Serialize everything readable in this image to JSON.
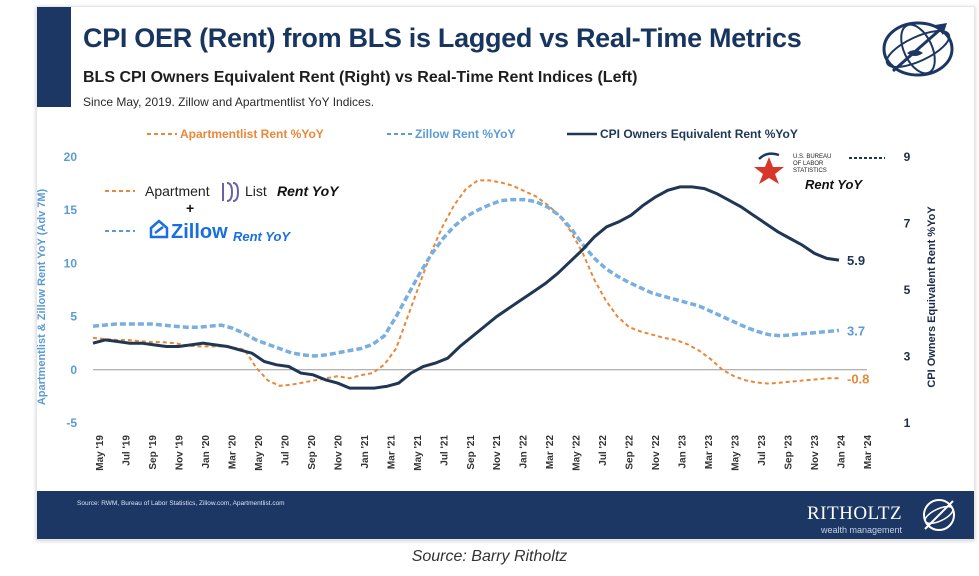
{
  "header": {
    "title": "CPI OER (Rent) from BLS is Lagged vs Real-Time Metrics",
    "subtitle": "BLS CPI Owners Equivalent Rent (Right) vs Real-Time Rent Indices (Left)",
    "note": "Since May, 2019. Zillow and Apartmentlist YoY Indices."
  },
  "inline_labels": {
    "apartment_word": "Apartment",
    "list_word": "List",
    "rent_yoy_1": "Rent YoY",
    "plus": "+",
    "zillow_word": "Zillow",
    "rent_yoy_2": "Rent YoY",
    "bls_line1": "U.S. BUREAU",
    "bls_line2": "OF LABOR",
    "bls_line3": "STATISTICS",
    "rent_yoy_3": "Rent YoY"
  },
  "footer": {
    "source": "Source: RWM, Bureau of Labor Statistics, Zillow.com, Apartmentlist.com",
    "brand": "RITHOLTZ",
    "brand_sub": "wealth management"
  },
  "caption": "Source: Barry Ritholtz",
  "colors": {
    "navy": "#1c3764",
    "apartmentlist": "#e8883a",
    "zillow": "#5b9bd5",
    "cpi": "#1f3655"
  },
  "chart_data": {
    "type": "line",
    "legend_placement": "top",
    "grid": false,
    "x_tick_labels": [
      "May '19",
      "Jul '19",
      "Sep '19",
      "Nov '19",
      "Jan '20",
      "Mar '20",
      "May '20",
      "Jul '20",
      "Sep '20",
      "Nov '20",
      "Jan '21",
      "Mar '21",
      "May '21",
      "Jul '21",
      "Sep '21",
      "Nov '21",
      "Jan '22",
      "Mar '22",
      "May '22",
      "Jul '22",
      "Sep '22",
      "Nov '22",
      "Jan '23",
      "Mar '23",
      "May '23",
      "Jul '23",
      "Sep '23",
      "Nov '23",
      "Jan '24",
      "Mar '24"
    ],
    "y_left": {
      "label": "Apartmentlist & Zillow Rent YoY (Adv 7M)",
      "range": [
        -5,
        20
      ],
      "ticks": [
        "-5",
        "0",
        "5",
        "10",
        "15",
        "20"
      ]
    },
    "y_right": {
      "label": "CPI Owners Equivalent Rent %YoY",
      "range": [
        1,
        9
      ],
      "ticks": [
        "1",
        "3",
        "5",
        "7",
        "9"
      ]
    },
    "series": [
      {
        "name": "Apartmentlist Rent %YoY",
        "axis": "left",
        "style": "dashed",
        "end_label": "-0.8",
        "values": [
          3.0,
          2.9,
          2.8,
          2.8,
          2.7,
          2.6,
          2.6,
          2.5,
          2.3,
          2.2,
          2.2,
          2.2,
          2.1,
          1.9,
          0.2,
          -1.0,
          -1.5,
          -1.4,
          -1.2,
          -1.0,
          -0.8,
          -0.6,
          -0.8,
          -0.5,
          -0.3,
          0.5,
          2.0,
          5.0,
          8.0,
          11.0,
          13.5,
          15.5,
          17.0,
          17.8,
          17.8,
          17.6,
          17.3,
          16.8,
          16.3,
          15.5,
          14.5,
          13.0,
          11.0,
          8.5,
          6.5,
          5.0,
          4.0,
          3.6,
          3.3,
          3.0,
          2.8,
          2.4,
          1.8,
          1.0,
          0.0,
          -0.6,
          -1.0,
          -1.2,
          -1.3,
          -1.2,
          -1.1,
          -1.0,
          -0.9,
          -0.8,
          -0.8
        ]
      },
      {
        "name": "Zillow Rent %YoY",
        "axis": "left",
        "style": "dashed",
        "end_label": "3.7",
        "values": [
          4.1,
          4.2,
          4.3,
          4.3,
          4.3,
          4.3,
          4.2,
          4.1,
          4.0,
          4.0,
          4.1,
          4.2,
          3.9,
          3.4,
          2.8,
          2.4,
          2.0,
          1.6,
          1.4,
          1.3,
          1.4,
          1.6,
          1.8,
          2.0,
          2.4,
          3.2,
          5.0,
          7.0,
          9.0,
          10.8,
          12.3,
          13.5,
          14.4,
          15.0,
          15.5,
          15.9,
          16.0,
          16.0,
          15.8,
          15.3,
          14.5,
          13.3,
          11.8,
          10.5,
          9.5,
          8.8,
          8.2,
          7.7,
          7.2,
          6.9,
          6.6,
          6.3,
          6.0,
          5.5,
          5.0,
          4.5,
          4.0,
          3.6,
          3.3,
          3.2,
          3.3,
          3.4,
          3.5,
          3.6,
          3.7
        ]
      },
      {
        "name": "CPI Owners Equivalent Rent %YoY",
        "axis": "right",
        "style": "solid",
        "end_label": "5.9",
        "values": [
          3.4,
          3.5,
          3.45,
          3.4,
          3.4,
          3.35,
          3.3,
          3.3,
          3.35,
          3.4,
          3.35,
          3.3,
          3.2,
          3.1,
          2.85,
          2.75,
          2.7,
          2.5,
          2.45,
          2.3,
          2.2,
          2.05,
          2.05,
          2.05,
          2.1,
          2.2,
          2.5,
          2.7,
          2.8,
          2.95,
          3.3,
          3.6,
          3.9,
          4.2,
          4.45,
          4.7,
          4.95,
          5.2,
          5.5,
          5.85,
          6.2,
          6.6,
          6.9,
          7.05,
          7.25,
          7.55,
          7.8,
          8.0,
          8.1,
          8.1,
          8.05,
          7.9,
          7.7,
          7.5,
          7.25,
          7.0,
          6.75,
          6.55,
          6.35,
          6.1,
          5.95,
          5.9
        ]
      }
    ]
  }
}
